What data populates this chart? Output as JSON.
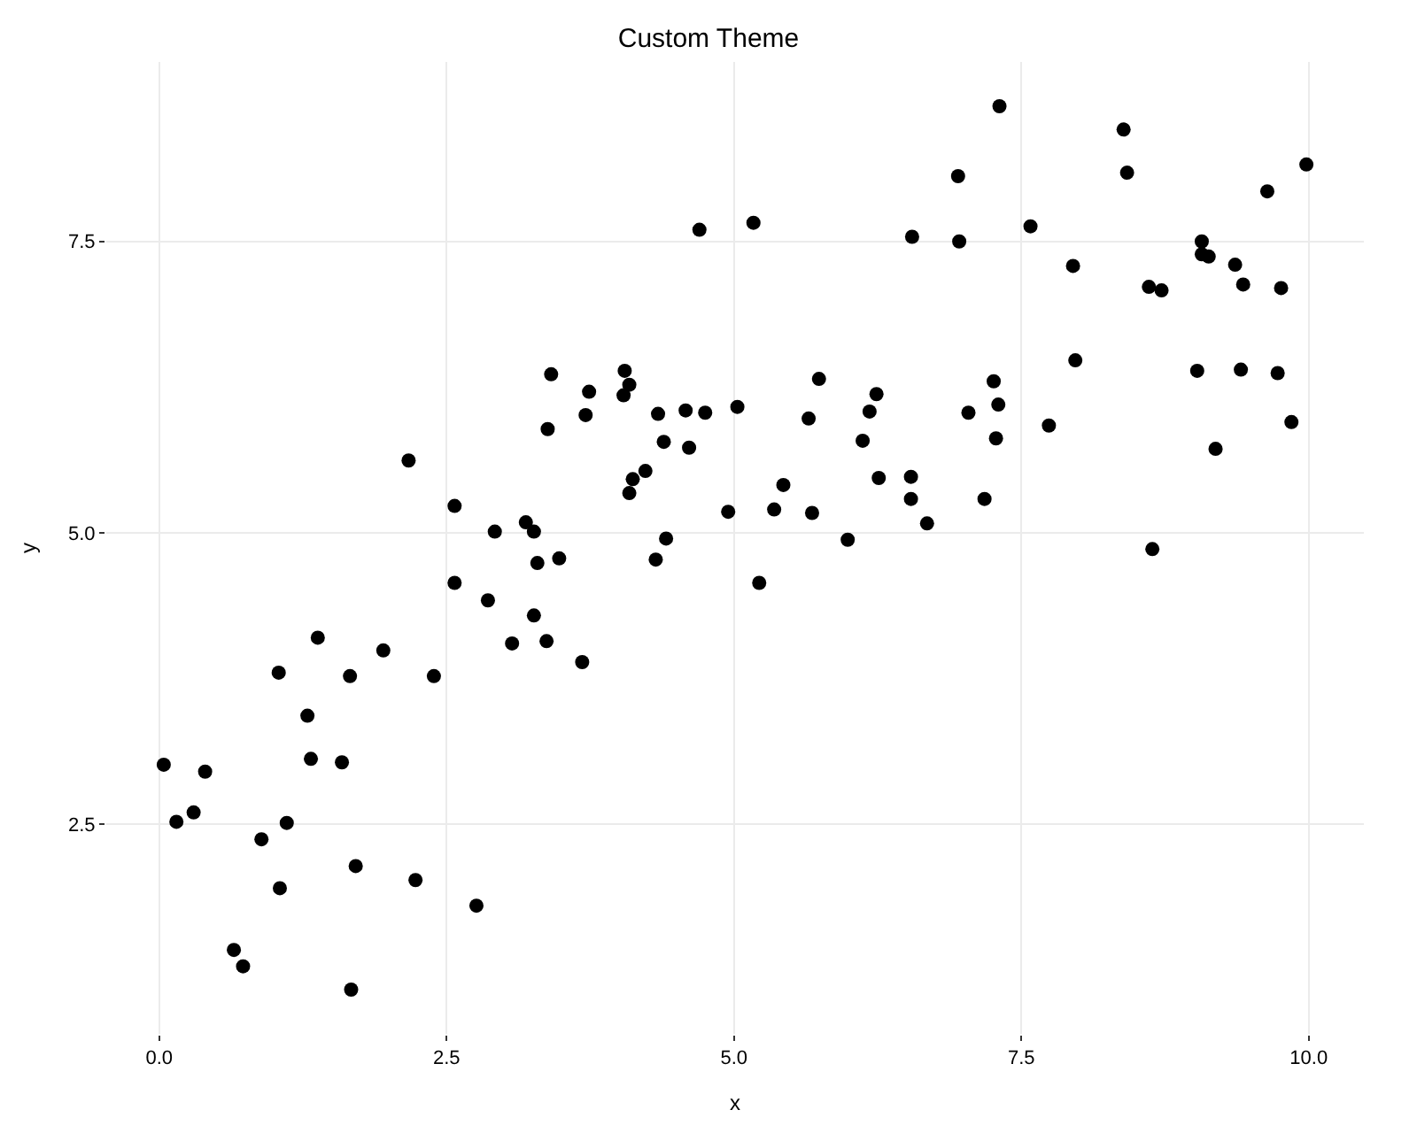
{
  "chart_data": {
    "type": "scatter",
    "title": "Custom Theme",
    "xlabel": "x",
    "ylabel": "y",
    "xlim": [
      -0.46,
      10.48
    ],
    "ylim": [
      0.7,
      9.04
    ],
    "xticks": [
      {
        "value": 0,
        "label": "0.0"
      },
      {
        "value": 2.5,
        "label": "2.5"
      },
      {
        "value": 5,
        "label": "5.0"
      },
      {
        "value": 7.5,
        "label": "7.5"
      },
      {
        "value": 10,
        "label": "10.0"
      }
    ],
    "yticks": [
      {
        "value": 2.5,
        "label": "2.5"
      },
      {
        "value": 5,
        "label": "5.0"
      },
      {
        "value": 7.5,
        "label": "7.5"
      }
    ],
    "grid": true,
    "marker": "circle",
    "series": [
      {
        "color": "#000000",
        "x": [
          0.04,
          0.15,
          0.3,
          0.4,
          0.65,
          0.73,
          0.89,
          1.11,
          1.05,
          1.29,
          1.04,
          1.32,
          1.59,
          1.66,
          1.38,
          1.71,
          1.67,
          1.95,
          2.39,
          2.23,
          2.76,
          2.57,
          2.86,
          2.92,
          3.19,
          3.26,
          3.29,
          3.48,
          3.26,
          3.07,
          3.37,
          3.68,
          4.32,
          4.41,
          4.7,
          2.17,
          2.57,
          3.41,
          3.38,
          3.74,
          3.71,
          4.05,
          4.09,
          4.04,
          4.34,
          4.58,
          4.75,
          5.03,
          4.39,
          4.61,
          4.23,
          4.12,
          4.09,
          4.95,
          7.31,
          8.39,
          8.42,
          6.95,
          9.98,
          9.64,
          5.17,
          6.55,
          6.96,
          7.58,
          7.95,
          9.07,
          9.07,
          9.13,
          9.36,
          9.43,
          9.76,
          8.61,
          8.72,
          7.97,
          9.03,
          9.41,
          9.73,
          9.85,
          9.19,
          8.64,
          5.74,
          6.24,
          6.18,
          5.65,
          7.26,
          7.3,
          7.28,
          7.04,
          7.74,
          5.43,
          5.35,
          5.68,
          6.12,
          6.26,
          6.54,
          6.54,
          6.68,
          7.18,
          5.99,
          5.22
        ],
        "values": [
          3.01,
          2.52,
          2.6,
          2.95,
          1.42,
          1.28,
          2.37,
          2.51,
          1.95,
          3.43,
          3.8,
          3.06,
          3.03,
          3.77,
          4.1,
          2.14,
          1.08,
          3.99,
          3.77,
          2.02,
          1.8,
          4.57,
          4.42,
          5.01,
          5.09,
          5.01,
          4.74,
          4.78,
          4.29,
          4.05,
          4.07,
          3.89,
          4.77,
          4.95,
          7.6,
          5.62,
          5.23,
          6.36,
          5.89,
          6.21,
          6.01,
          6.39,
          6.27,
          6.18,
          6.02,
          6.05,
          6.03,
          6.08,
          5.78,
          5.73,
          5.53,
          5.46,
          5.34,
          5.18,
          8.66,
          8.46,
          8.09,
          8.06,
          8.16,
          7.93,
          7.66,
          7.54,
          7.5,
          7.63,
          7.29,
          7.5,
          7.39,
          7.37,
          7.3,
          7.13,
          7.1,
          7.11,
          7.08,
          6.48,
          6.39,
          6.4,
          6.37,
          5.95,
          5.72,
          4.86,
          6.32,
          6.19,
          6.04,
          5.98,
          6.3,
          6.1,
          5.81,
          6.03,
          5.92,
          5.41,
          5.2,
          5.17,
          5.79,
          5.47,
          5.48,
          5.29,
          5.08,
          5.29,
          4.94,
          4.57
        ]
      }
    ]
  }
}
